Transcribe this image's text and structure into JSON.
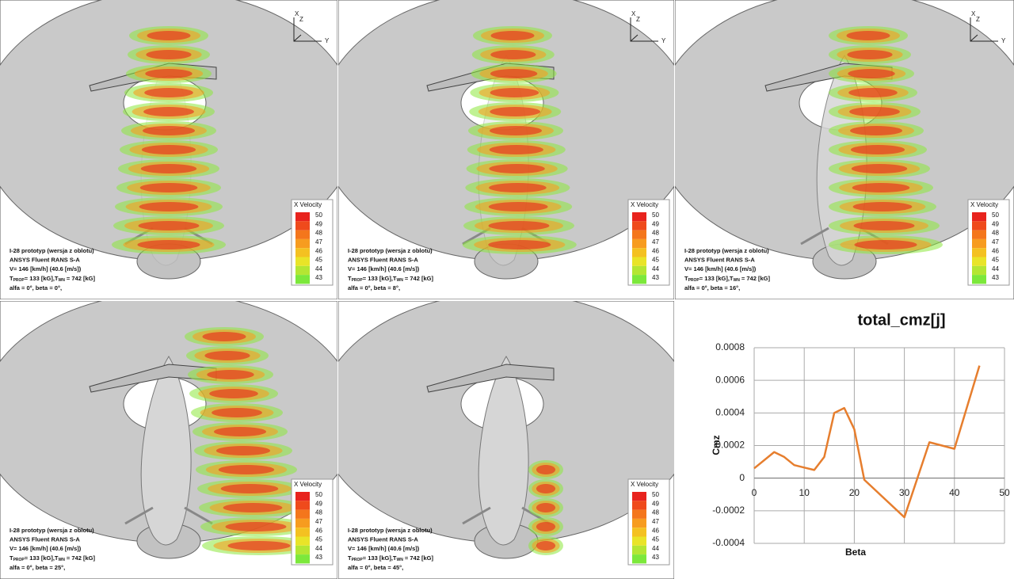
{
  "panels": [
    {
      "lines": [
        "I-28 prototyp (wersja z oblotu)",
        "ANSYS Fluent RANS S-A",
        "V= 146 [km/h] (40.6 [m/s])"
      ],
      "thrust": [
        "T",
        "PROP",
        "= 133 [kG],T",
        "WN",
        " = 742 [kG]"
      ],
      "angles": "alfa = 0°, beta = 0°,",
      "legend_title": "X Velocity",
      "legend_ticks": [
        50,
        49,
        48,
        47,
        46,
        45,
        44,
        43
      ],
      "axes": [
        "X",
        "Z",
        "Y"
      ]
    },
    {
      "lines": [
        "I-28 prototyp (wersja z oblotu)",
        "ANSYS Fluent RANS S-A",
        "V= 146 [km/h] (40.6 [m/s])"
      ],
      "thrust": [
        "T",
        "PROP",
        "= 133 [kG],T",
        "WN",
        " = 742 [kG]"
      ],
      "angles": "alfa = 0°, beta = 8°,",
      "legend_title": "X Velocity",
      "legend_ticks": [
        50,
        49,
        48,
        47,
        46,
        45,
        44,
        43
      ],
      "axes": [
        "X",
        "Z",
        "Y"
      ]
    },
    {
      "lines": [
        "I-28 prototyp (wersja z oblotu)",
        "ANSYS Fluent RANS S-A",
        "V= 146 [km/h] (40.6 [m/s])"
      ],
      "thrust": [
        "T",
        "PROP",
        "= 133 [kG],T",
        "WN",
        " = 742 [kG]"
      ],
      "angles": "alfa = 0°, beta = 16°,",
      "legend_title": "X Velocity",
      "legend_ticks": [
        50,
        49,
        48,
        47,
        46,
        45,
        44,
        43
      ],
      "axes": [
        "X",
        "Z",
        "Y"
      ]
    },
    {
      "lines": [
        "I-28 prototyp (wersja z oblotu)",
        "ANSYS Fluent RANS S-A",
        "V= 146 [km/h] (40.6 [m/s])"
      ],
      "thrust": [
        "T",
        "PROP",
        "= 133 [kG],T",
        "WN",
        " = 742 [kG]"
      ],
      "angles": "alfa = 0°, beta = 25°,",
      "legend_title": "X Velocity",
      "legend_ticks": [
        50,
        49,
        48,
        47,
        46,
        45,
        44,
        43
      ]
    },
    {
      "lines": [
        "I-28 prototyp (wersja z oblotu)",
        "ANSYS Fluent RANS S-A",
        "V= 146 [km/h] (40.6 [m/s])"
      ],
      "thrust": [
        "T",
        "PROP",
        "= 133 [kG],T",
        "WN",
        " = 742 [kG]"
      ],
      "angles": "alfa = 0°, beta = 45°,",
      "legend_title": "X Velocity",
      "legend_ticks": [
        50,
        49,
        48,
        47,
        46,
        45,
        44,
        43
      ]
    }
  ],
  "legend_colors": [
    "#e8231d",
    "#ef4a1c",
    "#f4761c",
    "#f79c1f",
    "#f4c121",
    "#e9e428",
    "#b4e633",
    "#7ce83b"
  ],
  "chart_data": {
    "type": "line",
    "title": "total_cmz[j]",
    "x_label": "Beta",
    "y_label": "Cmz",
    "x": [
      0,
      4,
      6,
      8,
      12,
      14,
      16,
      18,
      20,
      22,
      30,
      35,
      40,
      45
    ],
    "series": [
      {
        "name": "total_cmz[j]",
        "color": "#e67e2e",
        "values": [
          6e-05,
          0.00016,
          0.00013,
          8e-05,
          5e-05,
          0.00013,
          0.0004,
          0.00043,
          0.0003,
          -1e-05,
          -0.00024,
          0.00022,
          0.00018,
          0.00069
        ]
      }
    ],
    "xlim": [
      0,
      50
    ],
    "xticks": [
      0,
      10,
      20,
      30,
      40,
      50
    ],
    "ylim": [
      -0.0004,
      0.0008
    ],
    "yticks": [
      -0.0004,
      -0.0002,
      0,
      0.0002,
      0.0004,
      0.0006,
      0.0008
    ],
    "grid": true
  }
}
